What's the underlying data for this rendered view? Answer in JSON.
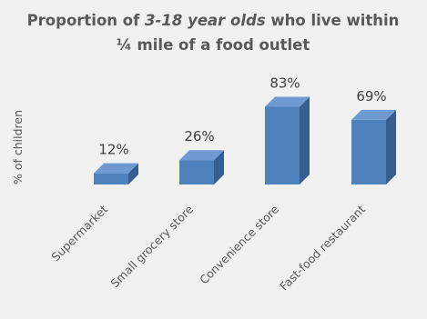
{
  "chart_data": {
    "type": "bar",
    "title_line1_prefix": "Proportion of ",
    "title_line1_em": "3-18 year olds",
    "title_line1_suffix": " who live within",
    "title_line2": "¼ mile of a food outlet",
    "ylabel": "% of children",
    "categories": [
      "Supermarket",
      "Small grocery store",
      "Convenience store",
      "Fast-food restaurant"
    ],
    "values": [
      12,
      26,
      83,
      69
    ],
    "value_labels": [
      "12%",
      "26%",
      "83%",
      "69%"
    ],
    "ylim": [
      0,
      100
    ],
    "grid": false,
    "legend": "none",
    "bar_style": "3d",
    "colors": {
      "front": "#4f81bd",
      "top": "#6f9ad1",
      "side": "#365f8f",
      "background": "#f1f1f1"
    }
  }
}
